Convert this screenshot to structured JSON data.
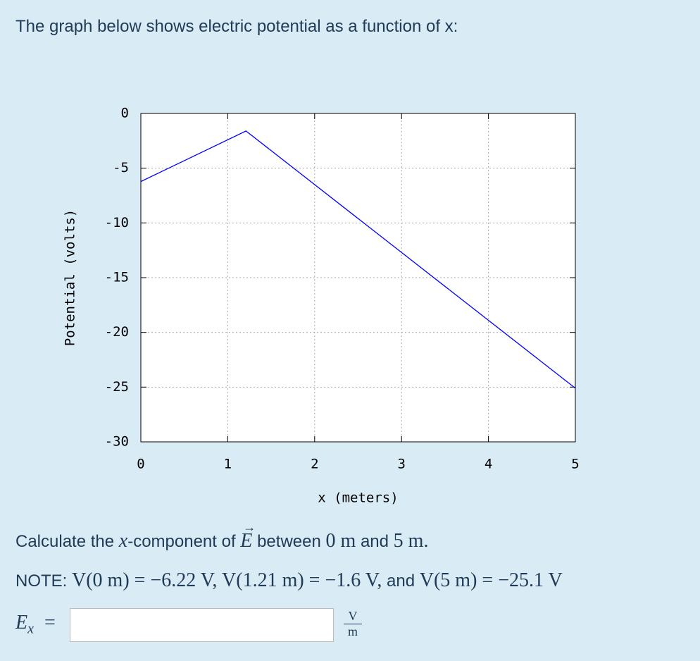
{
  "header": {
    "title": "The graph below shows electric potential as a function of x:"
  },
  "chart_data": {
    "type": "line",
    "x_label": "x (meters)",
    "y_label": "Potential (volts)",
    "x": [
      0,
      1.21,
      5
    ],
    "series": [
      {
        "color": "#0000ff",
        "values": [
          -6.22,
          -1.6,
          -25.1
        ]
      }
    ],
    "xlim": [
      0,
      5
    ],
    "ylim": [
      -30,
      0
    ],
    "xticks": [
      0,
      1,
      2,
      3,
      4,
      5
    ],
    "yticks": [
      0,
      -5,
      -10,
      -15,
      -20,
      -25,
      -30
    ],
    "grid": true
  },
  "question": {
    "parts": [
      "Calculate the",
      "x",
      "-component of",
      "E",
      "between",
      "0 m",
      "and",
      "5 m."
    ]
  },
  "note": {
    "label": "NOTE:",
    "parts": [
      "V(0 m) = −6.22 V,",
      "V(1.21 m) = −1.6 V,",
      "and",
      "V(5 m) = −25.1 V"
    ]
  },
  "answer": {
    "symbol": "E",
    "subscript": "x",
    "equals": "=",
    "unit_numerator": "V",
    "unit_denominator": "m"
  }
}
